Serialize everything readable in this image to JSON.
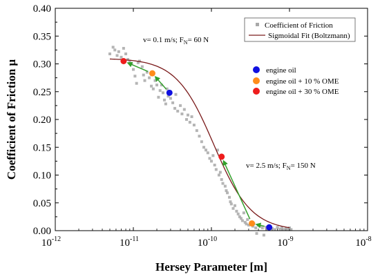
{
  "chart_data": {
    "type": "scatter",
    "xscale": "log",
    "xlim": [
      1e-12,
      1e-08
    ],
    "ylim": [
      0.0,
      0.4
    ],
    "xlabel": "Hersey Parameter [m]",
    "ylabel": "Coefficient of Friction μ",
    "x_ticks": [
      {
        "value": 1e-12,
        "base": "10",
        "exp": "-12"
      },
      {
        "value": 1e-11,
        "base": "10",
        "exp": "-11"
      },
      {
        "value": 1e-10,
        "base": "10",
        "exp": "-10"
      },
      {
        "value": 1e-09,
        "base": "10",
        "exp": "-9"
      },
      {
        "value": 1e-08,
        "base": "10",
        "exp": "-8"
      }
    ],
    "y_ticks": [
      "0.00",
      "0.05",
      "0.10",
      "0.15",
      "0.20",
      "0.25",
      "0.30",
      "0.35",
      "0.40"
    ],
    "legend_box": {
      "position": "top-right",
      "entries": [
        {
          "label": "Coefficient of Friction",
          "marker": "square",
          "color": "#a8a8a8"
        },
        {
          "label": "Sigmoidal Fit (Boltzmann)",
          "marker": "line",
          "color": "#7a1a1a"
        }
      ]
    },
    "legend_points": {
      "entries": [
        {
          "label": "engine oil",
          "color": "#1010e0"
        },
        {
          "label": "engine oil + 10 % OME",
          "color": "#ff8c1a"
        },
        {
          "label": "engine oil + 30 % OME",
          "color": "#ee1c1c"
        }
      ]
    },
    "annotations": [
      {
        "main": "v= 0.1 m/s; F",
        "sub": "N",
        "tail": "= 60 N"
      },
      {
        "main": "v= 2.5 m/s; F",
        "sub": "N",
        "tail": "= 150 N"
      }
    ],
    "series": [
      {
        "name": "Coefficient of Friction",
        "color": "#a8a8a8",
        "points": [
          [
            5e-12,
            0.318
          ],
          [
            5.5e-12,
            0.33
          ],
          [
            5.8e-12,
            0.325
          ],
          [
            6.2e-12,
            0.315
          ],
          [
            6.5e-12,
            0.322
          ],
          [
            7e-12,
            0.312
          ],
          [
            7.5e-12,
            0.328
          ],
          [
            8e-12,
            0.318
          ],
          [
            8.5e-12,
            0.308
          ],
          [
            9e-12,
            0.305
          ],
          [
            9.5e-12,
            0.3
          ],
          [
            1e-11,
            0.29
          ],
          [
            1.05e-11,
            0.278
          ],
          [
            1.1e-11,
            0.265
          ],
          [
            1.15e-11,
            0.302
          ],
          [
            1.2e-11,
            0.305
          ],
          [
            1.3e-11,
            0.295
          ],
          [
            1.35e-11,
            0.28
          ],
          [
            1.4e-11,
            0.27
          ],
          [
            1.5e-11,
            0.285
          ],
          [
            1.6e-11,
            0.275
          ],
          [
            1.7e-11,
            0.26
          ],
          [
            1.8e-11,
            0.255
          ],
          [
            1.9e-11,
            0.27
          ],
          [
            2e-11,
            0.262
          ],
          [
            2.1e-11,
            0.24
          ],
          [
            2.2e-11,
            0.252
          ],
          [
            2.3e-11,
            0.262
          ],
          [
            2.4e-11,
            0.248
          ],
          [
            2.5e-11,
            0.235
          ],
          [
            2.6e-11,
            0.228
          ],
          [
            2.7e-11,
            0.255
          ],
          [
            2.8e-11,
            0.242
          ],
          [
            3e-11,
            0.238
          ],
          [
            3.2e-11,
            0.23
          ],
          [
            3.4e-11,
            0.22
          ],
          [
            3.5e-11,
            0.245
          ],
          [
            3.7e-11,
            0.215
          ],
          [
            4e-11,
            0.225
          ],
          [
            4.2e-11,
            0.21
          ],
          [
            4.5e-11,
            0.218
          ],
          [
            4.8e-11,
            0.2
          ],
          [
            5e-11,
            0.208
          ],
          [
            5.3e-11,
            0.195
          ],
          [
            5.6e-11,
            0.205
          ],
          [
            6e-11,
            0.19
          ],
          [
            6.5e-11,
            0.18
          ],
          [
            7e-11,
            0.17
          ],
          [
            7.5e-11,
            0.16
          ],
          [
            8e-11,
            0.15
          ],
          [
            8.5e-11,
            0.145
          ],
          [
            9e-11,
            0.14
          ],
          [
            9.5e-11,
            0.13
          ],
          [
            1e-10,
            0.125
          ],
          [
            1.05e-10,
            0.135
          ],
          [
            1.1e-10,
            0.118
          ],
          [
            1.15e-10,
            0.11
          ],
          [
            1.2e-10,
            0.145
          ],
          [
            1.25e-10,
            0.1
          ],
          [
            1.3e-10,
            0.105
          ],
          [
            1.35e-10,
            0.092
          ],
          [
            1.4e-10,
            0.085
          ],
          [
            1.5e-10,
            0.08
          ],
          [
            1.55e-10,
            0.072
          ],
          [
            1.6e-10,
            0.068
          ],
          [
            1.7e-10,
            0.06
          ],
          [
            1.75e-10,
            0.052
          ],
          [
            1.8e-10,
            0.048
          ],
          [
            1.9e-10,
            0.04
          ],
          [
            2e-10,
            0.045
          ],
          [
            2.1e-10,
            0.035
          ],
          [
            2.2e-10,
            0.03
          ],
          [
            2.3e-10,
            0.025
          ],
          [
            2.4e-10,
            0.022
          ],
          [
            2.5e-10,
            0.018
          ],
          [
            2.6e-10,
            0.032
          ],
          [
            2.7e-10,
            0.015
          ],
          [
            2.8e-10,
            0.012
          ],
          [
            2.9e-10,
            0.02
          ],
          [
            3e-10,
            0.01
          ],
          [
            3.2e-10,
            0.015
          ],
          [
            3.4e-10,
            0.008
          ],
          [
            3.5e-10,
            0.012
          ],
          [
            3.7e-10,
            0.005
          ],
          [
            3.8e-10,
            -0.005
          ],
          [
            4e-10,
            0.01
          ],
          [
            4.2e-10,
            0.008
          ],
          [
            4.5e-10,
            0.005
          ],
          [
            4.7e-10,
            -0.008
          ],
          [
            5e-10,
            0.006
          ],
          [
            5.3e-10,
            0.003
          ],
          [
            5.6e-10,
            0.008
          ],
          [
            6e-10,
            0.004
          ],
          [
            6.5e-10,
            0.002
          ],
          [
            7e-10,
            0.006
          ],
          [
            7.5e-10,
            0.003
          ],
          [
            8e-10,
            0.005
          ],
          [
            8.5e-10,
            0.002
          ],
          [
            9e-10,
            0.004
          ],
          [
            9.5e-10,
            0.003
          ],
          [
            1e-09,
            0.005
          ],
          [
            1.05e-09,
            0.002
          ]
        ]
      },
      {
        "name": "Sigmoidal Fit (Boltzmann)",
        "color": "#7a1a1a",
        "fit": {
          "A1": 0.31,
          "A2": 0.0,
          "x0_log": -9.97,
          "dx_log": 0.24
        },
        "x_range": [
          5e-12,
          1e-09
        ]
      },
      {
        "name": "engine oil",
        "color": "#1010e0",
        "points": [
          [
            2.9e-11,
            0.248
          ],
          [
            5.5e-10,
            0.006
          ]
        ]
      },
      {
        "name": "engine oil + 10 % OME",
        "color": "#ff8c1a",
        "points": [
          [
            1.75e-11,
            0.283
          ],
          [
            3.3e-10,
            0.013
          ]
        ]
      },
      {
        "name": "engine oil + 30 % OME",
        "color": "#ee1c1c",
        "points": [
          [
            7.5e-12,
            0.305
          ],
          [
            1.35e-10,
            0.133
          ]
        ]
      }
    ],
    "arrows": {
      "color": "#33a02c",
      "paths": [
        [
          [
            2.9e-11,
            0.248
          ],
          [
            1.75e-11,
            0.283
          ],
          [
            7.5e-12,
            0.305
          ]
        ],
        [
          [
            5.5e-10,
            0.006
          ],
          [
            3.3e-10,
            0.013
          ],
          [
            1.35e-10,
            0.133
          ]
        ]
      ]
    }
  }
}
